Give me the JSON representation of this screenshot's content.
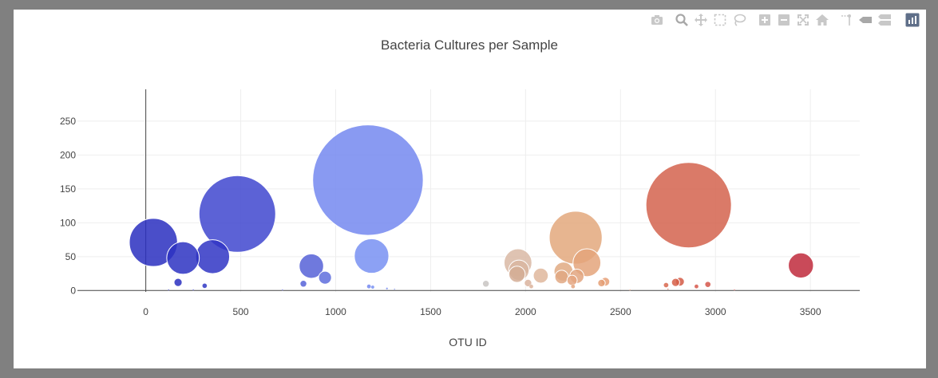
{
  "modebar": {
    "icons": [
      "camera-icon",
      "zoom-icon",
      "pan-icon",
      "box-select-icon",
      "lasso-select-icon",
      "zoom-in-icon",
      "zoom-out-icon",
      "autoscale-icon",
      "reset-axes-icon",
      "spike-lines-icon",
      "hover-closest-icon",
      "hover-compare-icon",
      "plotly-logo-icon"
    ]
  },
  "chart_data": {
    "type": "scatter",
    "subtype": "bubble",
    "title": "Bacteria Cultures per Sample",
    "xlabel": "OTU ID",
    "ylabel": "",
    "xlim": [
      -360,
      3760
    ],
    "ylim": [
      -2,
      297
    ],
    "xticks": [
      0,
      500,
      1000,
      1500,
      2000,
      2500,
      3000,
      3500
    ],
    "yticks": [
      0,
      50,
      100,
      150,
      200,
      250
    ],
    "grid": true,
    "legend": "none",
    "colorscale": "Bluered (blue for low OTU ID, red for high OTU ID)",
    "colors": {
      "grid": "#eeeeee",
      "axis_line": "#444444",
      "tick_text": "#444444",
      "title_text": "#444444"
    },
    "points": [
      {
        "x": 40,
        "y": 71,
        "size": 71,
        "color": "#2a2fbf"
      },
      {
        "x": 196,
        "y": 48,
        "size": 48,
        "color": "#2d32c2"
      },
      {
        "x": 352,
        "y": 50,
        "size": 50,
        "color": "#3035c4"
      },
      {
        "x": 482,
        "y": 113,
        "size": 113,
        "color": "#3f46cf"
      },
      {
        "x": 872,
        "y": 36,
        "size": 36,
        "color": "#5661d7"
      },
      {
        "x": 944,
        "y": 19,
        "size": 19,
        "color": "#5e6ddd"
      },
      {
        "x": 1170,
        "y": 163,
        "size": 163,
        "color": "#7488f0"
      },
      {
        "x": 1189,
        "y": 51,
        "size": 51,
        "color": "#7890f2"
      },
      {
        "x": 1960,
        "y": 41,
        "size": 41,
        "color": "#d9b8a4"
      },
      {
        "x": 1965,
        "y": 30,
        "size": 30,
        "color": "#d9b6a0"
      },
      {
        "x": 1955,
        "y": 24,
        "size": 24,
        "color": "#d4ad95"
      },
      {
        "x": 2080,
        "y": 22,
        "size": 22,
        "color": "#dfb79c"
      },
      {
        "x": 2013,
        "y": 11,
        "size": 11,
        "color": "#d9b39d"
      },
      {
        "x": 1791,
        "y": 10,
        "size": 10,
        "color": "#c8c4c2"
      },
      {
        "x": 2264,
        "y": 78,
        "size": 78,
        "color": "#e3a87d"
      },
      {
        "x": 2323,
        "y": 41,
        "size": 41,
        "color": "#e4a57b"
      },
      {
        "x": 2200,
        "y": 28,
        "size": 28,
        "color": "#e1aa82"
      },
      {
        "x": 2190,
        "y": 20,
        "size": 20,
        "color": "#e0a883"
      },
      {
        "x": 2270,
        "y": 21,
        "size": 21,
        "color": "#e2a57f"
      },
      {
        "x": 2245,
        "y": 15,
        "size": 15,
        "color": "#e4a47f"
      },
      {
        "x": 2420,
        "y": 13,
        "size": 13,
        "color": "#e69f75"
      },
      {
        "x": 2400,
        "y": 11,
        "size": 11,
        "color": "#e49d73"
      },
      {
        "x": 2859,
        "y": 126,
        "size": 126,
        "color": "#d4634e"
      },
      {
        "x": 3450,
        "y": 37,
        "size": 37,
        "color": "#c02a3c"
      },
      {
        "x": 2813,
        "y": 13,
        "size": 13,
        "color": "#d45a45"
      },
      {
        "x": 2790,
        "y": 12,
        "size": 12,
        "color": "#d65f48"
      },
      {
        "x": 2960,
        "y": 9,
        "size": 9,
        "color": "#d5564a"
      },
      {
        "x": 2740,
        "y": 8,
        "size": 8,
        "color": "#d8674e"
      },
      {
        "x": 2900,
        "y": 6,
        "size": 6,
        "color": "#d6574a"
      },
      {
        "x": 170,
        "y": 12,
        "size": 12,
        "color": "#2a2fc0"
      },
      {
        "x": 310,
        "y": 7,
        "size": 7,
        "color": "#3037c4"
      },
      {
        "x": 830,
        "y": 10,
        "size": 10,
        "color": "#5663d8"
      },
      {
        "x": 1195,
        "y": 5,
        "size": 5,
        "color": "#7890f2"
      },
      {
        "x": 1175,
        "y": 6,
        "size": 6,
        "color": "#7488f0"
      },
      {
        "x": 1270,
        "y": 3,
        "size": 3,
        "color": "#7a8ef0"
      },
      {
        "x": 1310,
        "y": 2,
        "size": 2,
        "color": "#7a8ef0"
      },
      {
        "x": 2030,
        "y": 6,
        "size": 6,
        "color": "#dbb39b"
      },
      {
        "x": 2250,
        "y": 6,
        "size": 6,
        "color": "#e4a47f"
      },
      {
        "x": 120,
        "y": 1,
        "size": 1,
        "color": "#2a2fc0"
      },
      {
        "x": 250,
        "y": 1,
        "size": 1,
        "color": "#2e34c3"
      },
      {
        "x": 720,
        "y": 1,
        "size": 1,
        "color": "#4a55d3"
      },
      {
        "x": 2550,
        "y": 1,
        "size": 1,
        "color": "#e89570"
      },
      {
        "x": 2750,
        "y": 2,
        "size": 2,
        "color": "#d8674e"
      },
      {
        "x": 3100,
        "y": 1,
        "size": 1,
        "color": "#cf4a46"
      }
    ]
  }
}
